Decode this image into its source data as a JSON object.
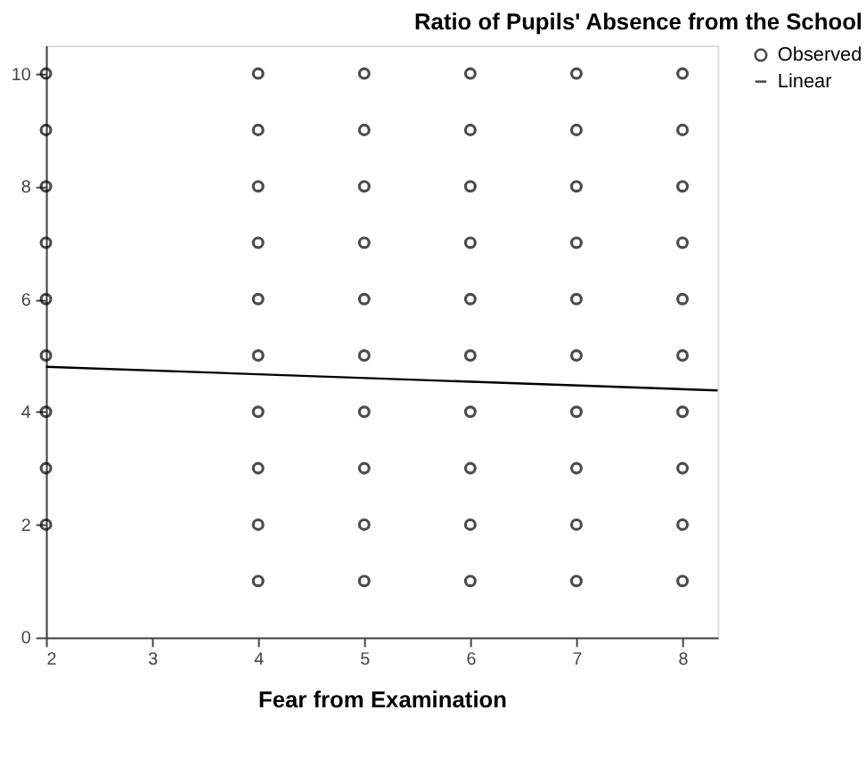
{
  "chart_data": {
    "type": "scatter",
    "title": "Ratio of Pupils' Absence from the School",
    "xlabel": "Fear from Examination",
    "xlim": [
      2,
      8.33
    ],
    "xticks": [
      2,
      3,
      4,
      5,
      6,
      7,
      8
    ],
    "ylim": [
      0,
      10.5
    ],
    "yticks": [
      0,
      2,
      4,
      6,
      8,
      10
    ],
    "grid": false,
    "legend": "top right",
    "series": [
      {
        "name": "Observed",
        "color": "#000000",
        "marker": "circle",
        "x": [
          2,
          2,
          2,
          2,
          2,
          2,
          2,
          2,
          2,
          4,
          4,
          4,
          4,
          4,
          4,
          4,
          4,
          4,
          4,
          5,
          5,
          5,
          5,
          5,
          5,
          5,
          5,
          5,
          5,
          6,
          6,
          6,
          6,
          6,
          6,
          6,
          6,
          6,
          6,
          7,
          7,
          7,
          7,
          7,
          7,
          7,
          7,
          7,
          7,
          8,
          8,
          8,
          8,
          8,
          8,
          8,
          8,
          8,
          8
        ],
        "values": [
          2,
          3,
          4,
          5,
          6,
          7,
          8,
          9,
          10,
          1,
          2,
          3,
          4,
          5,
          6,
          7,
          8,
          9,
          10,
          1,
          2,
          3,
          4,
          5,
          6,
          7,
          8,
          9,
          10,
          1,
          2,
          3,
          4,
          5,
          6,
          7,
          8,
          9,
          10,
          1,
          2,
          3,
          4,
          5,
          6,
          7,
          8,
          9,
          10,
          1,
          2,
          3,
          4,
          5,
          6,
          7,
          8,
          9,
          10
        ]
      },
      {
        "name": "Linear",
        "color": "#000000",
        "type": "line",
        "marker": "none",
        "line_style": "solid",
        "x": [
          2,
          8.33
        ],
        "values": [
          4.8,
          4.38
        ]
      }
    ]
  }
}
